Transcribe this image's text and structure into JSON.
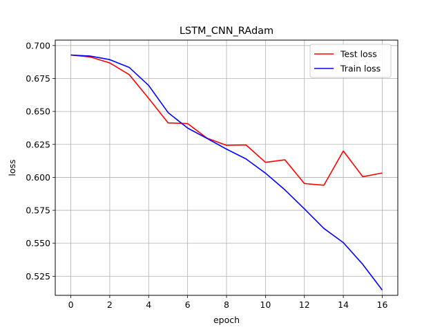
{
  "chart_data": {
    "type": "line",
    "title": "LSTM_CNN_RAdam",
    "xlabel": "epoch",
    "ylabel": "loss",
    "x": [
      0,
      1,
      2,
      3,
      4,
      5,
      6,
      7,
      8,
      9,
      10,
      11,
      12,
      13,
      14,
      15,
      16
    ],
    "xlim": [
      -0.8,
      16.8
    ],
    "ylim": [
      0.5105,
      0.7041
    ],
    "xticks": [
      0,
      2,
      4,
      6,
      8,
      10,
      12,
      14,
      16
    ],
    "xtick_labels": [
      "0",
      "2",
      "4",
      "6",
      "8",
      "10",
      "12",
      "14",
      "16"
    ],
    "yticks": [
      0.525,
      0.55,
      0.575,
      0.6,
      0.625,
      0.65,
      0.675,
      0.7
    ],
    "ytick_labels": [
      "0.525",
      "0.550",
      "0.575",
      "0.600",
      "0.625",
      "0.650",
      "0.675",
      "0.700"
    ],
    "grid": true,
    "legend_position": "top-right",
    "series": [
      {
        "name": "Test loss",
        "color": "#ff0000",
        "values": [
          0.6928,
          0.6913,
          0.6868,
          0.6779,
          0.6599,
          0.6413,
          0.6408,
          0.6297,
          0.6243,
          0.6246,
          0.6114,
          0.6133,
          0.5953,
          0.594,
          0.62,
          0.6005,
          0.6033
        ]
      },
      {
        "name": "Train loss",
        "color": "#0000ff",
        "values": [
          0.6928,
          0.692,
          0.6893,
          0.6834,
          0.6697,
          0.6491,
          0.6374,
          0.6295,
          0.6214,
          0.614,
          0.6032,
          0.5905,
          0.5761,
          0.5613,
          0.5505,
          0.534,
          0.5145
        ]
      }
    ]
  }
}
